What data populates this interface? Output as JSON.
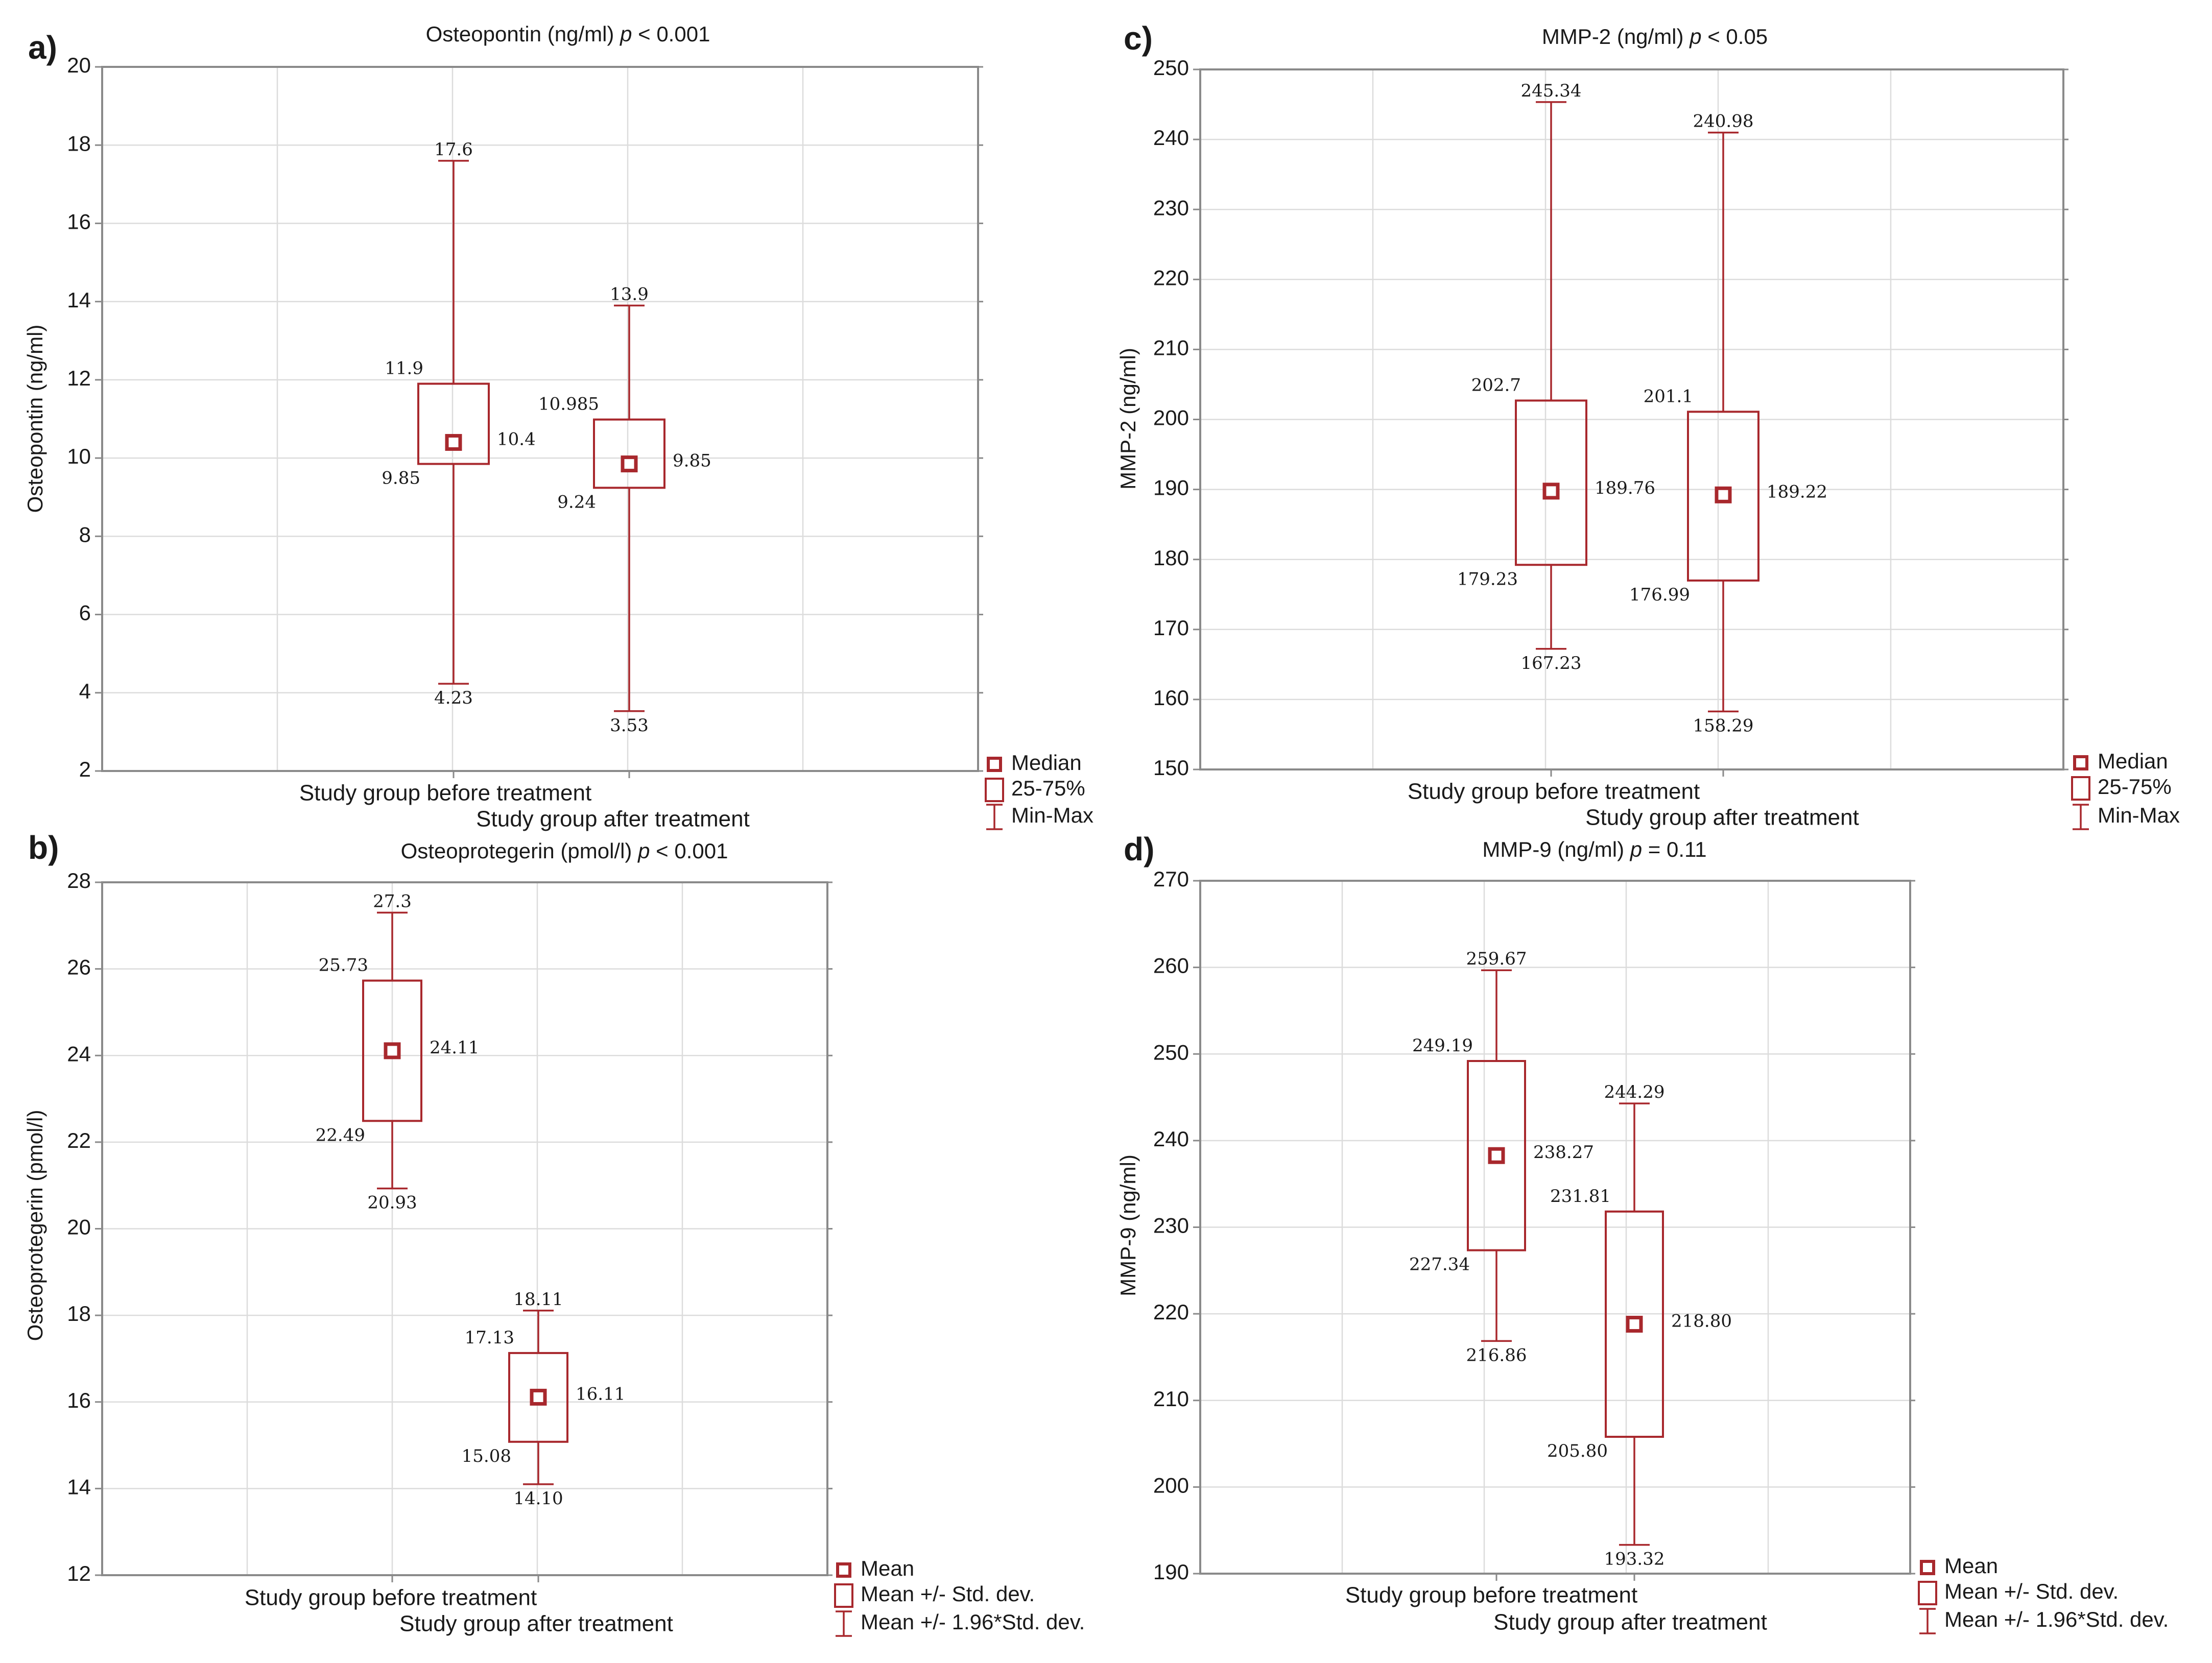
{
  "colors": {
    "box": "#a8282d",
    "text": "#1a1a1a",
    "grid": "#dcdcdc",
    "frame": "#8a8a8a"
  },
  "chart_data": [
    {
      "id": "a",
      "panel_label": "a)",
      "type": "box",
      "title": "Osteopontin (ng/ml)",
      "p_text": "p < 0.001",
      "ylabel": "Osteopontin (ng/ml)",
      "ylim": [
        2,
        20
      ],
      "yticks": [
        "2",
        "4",
        "6",
        "8",
        "10",
        "12",
        "14",
        "16",
        "18",
        "20"
      ],
      "categories": [
        "Study group before treatment",
        "Study group after treatment"
      ],
      "boxes": [
        {
          "category": "Study group before treatment",
          "min": 4.23,
          "q1": 9.85,
          "center": 10.4,
          "q3": 11.9,
          "max": 17.6,
          "labels": {
            "min": "4.23",
            "q1": "9.85",
            "center": "10.4",
            "q3": "11.9",
            "max": "17.6"
          }
        },
        {
          "category": "Study group after treatment",
          "min": 3.53,
          "q1": 9.24,
          "center": 9.85,
          "q3": 10.985,
          "max": 13.9,
          "labels": {
            "min": "3.53",
            "q1": "9.24",
            "center": "9.85",
            "q3": "10.985",
            "max": "13.9"
          }
        }
      ],
      "legend": [
        "Median",
        "25-75%",
        "Min-Max"
      ]
    },
    {
      "id": "b",
      "panel_label": "b)",
      "type": "box",
      "title": "Osteoprotegerin (pmol/l)",
      "p_text": "p < 0.001",
      "ylabel": "Osteoprotegerin (pmol/l)",
      "ylim": [
        12,
        28
      ],
      "yticks": [
        "12",
        "14",
        "16",
        "18",
        "20",
        "22",
        "24",
        "26",
        "28"
      ],
      "categories": [
        "Study group before treatment",
        "Study group after treatment"
      ],
      "boxes": [
        {
          "category": "Study group before treatment",
          "min": 20.93,
          "q1": 22.49,
          "center": 24.11,
          "q3": 25.73,
          "max": 27.3,
          "labels": {
            "min": "20.93",
            "q1": "22.49",
            "center": "24.11",
            "q3": "25.73",
            "max": "27.3"
          }
        },
        {
          "category": "Study group after treatment",
          "min": 14.1,
          "q1": 15.08,
          "center": 16.11,
          "q3": 17.13,
          "max": 18.11,
          "labels": {
            "min": "14.10",
            "q1": "15.08",
            "center": "16.11",
            "q3": "17.13",
            "max": "18.11"
          }
        }
      ],
      "legend": [
        "Mean",
        "Mean +/- Std. dev.",
        "Mean +/- 1.96*Std. dev."
      ]
    },
    {
      "id": "c",
      "panel_label": "c)",
      "type": "box",
      "title": "MMP-2 (ng/ml)",
      "p_text": "p < 0.05",
      "ylabel": "MMP-2 (ng/ml)",
      "ylim": [
        150,
        250
      ],
      "yticks": [
        "150",
        "160",
        "170",
        "180",
        "190",
        "200",
        "210",
        "220",
        "230",
        "240",
        "250"
      ],
      "categories": [
        "Study group before treatment",
        "Study group after treatment"
      ],
      "boxes": [
        {
          "category": "Study group before treatment",
          "min": 167.23,
          "q1": 179.23,
          "center": 189.76,
          "q3": 202.7,
          "max": 245.34,
          "labels": {
            "min": "167.23",
            "q1": "179.23",
            "center": "189.76",
            "q3": "202.7",
            "max": "245.34"
          }
        },
        {
          "category": "Study group after treatment",
          "min": 158.29,
          "q1": 176.99,
          "center": 189.22,
          "q3": 201.1,
          "max": 240.98,
          "labels": {
            "min": "158.29",
            "q1": "176.99",
            "center": "189.22",
            "q3": "201.1",
            "max": "240.98"
          }
        }
      ],
      "legend": [
        "Median",
        "25-75%",
        "Min-Max"
      ]
    },
    {
      "id": "d",
      "panel_label": "d)",
      "type": "box",
      "title": "MMP-9 (ng/ml)",
      "p_text": "p = 0.11",
      "ylabel": "MMP-9 (ng/ml)",
      "ylim": [
        190,
        270
      ],
      "yticks": [
        "190",
        "200",
        "210",
        "220",
        "230",
        "240",
        "250",
        "260",
        "270"
      ],
      "categories": [
        "Study group before treatment",
        "Study group after treatment"
      ],
      "boxes": [
        {
          "category": "Study group before treatment",
          "min": 216.86,
          "q1": 227.34,
          "center": 238.27,
          "q3": 249.19,
          "max": 259.67,
          "labels": {
            "min": "216.86",
            "q1": "227.34",
            "center": "238.27",
            "q3": "249.19",
            "max": "259.67"
          }
        },
        {
          "category": "Study group after treatment",
          "min": 193.32,
          "q1": 205.8,
          "center": 218.8,
          "q3": 231.81,
          "max": 244.29,
          "labels": {
            "min": "193.32",
            "q1": "205.80",
            "center": "218.80",
            "q3": "231.81",
            "max": "244.29"
          }
        }
      ],
      "legend": [
        "Mean",
        "Mean +/- Std. dev.",
        "Mean +/- 1.96*Std. dev."
      ]
    }
  ]
}
